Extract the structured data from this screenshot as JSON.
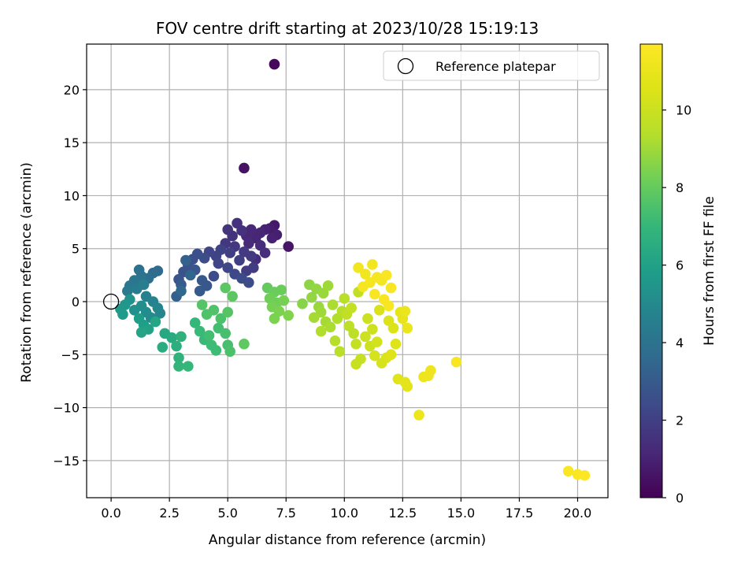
{
  "chart_data": {
    "type": "scatter",
    "title": "FOV centre drift starting at 2023/10/28 15:19:13",
    "xlabel": "Angular distance from reference (arcmin)",
    "ylabel": "Rotation from reference (arcmin)",
    "xlim": [
      -1.05,
      21.3
    ],
    "ylim": [
      -18.5,
      24.3
    ],
    "xticks": [
      0.0,
      2.5,
      5.0,
      7.5,
      10.0,
      12.5,
      15.0,
      17.5,
      20.0
    ],
    "xtick_labels": [
      "0.0",
      "2.5",
      "5.0",
      "7.5",
      "10.0",
      "12.5",
      "15.0",
      "17.5",
      "20.0"
    ],
    "yticks": [
      -15,
      -10,
      -5,
      0,
      5,
      10,
      15,
      20
    ],
    "ytick_labels": [
      "−15",
      "−10",
      "−5",
      "0",
      "5",
      "10",
      "15",
      "20"
    ],
    "grid": true,
    "legend": {
      "placement": "top-right",
      "entries": [
        "Reference platepar"
      ]
    },
    "reference_point": {
      "x": 0,
      "y": 0,
      "label": "Reference platepar"
    },
    "colorbar": {
      "label": "Hours from first FF file",
      "range": [
        0,
        11.7
      ],
      "ticks": [
        0,
        2,
        4,
        6,
        8,
        10
      ],
      "tick_labels": [
        "0",
        "2",
        "4",
        "6",
        "8",
        "10"
      ],
      "colormap": "viridis"
    },
    "points": [
      [
        7.0,
        22.4,
        0.2
      ],
      [
        5.7,
        12.6,
        0.5
      ],
      [
        7.6,
        5.2,
        0.6
      ],
      [
        7.0,
        7.2,
        0.7
      ],
      [
        6.8,
        6.9,
        0.8
      ],
      [
        7.1,
        6.3,
        0.9
      ],
      [
        6.9,
        6.0,
        1.0
      ],
      [
        6.6,
        6.8,
        1.0
      ],
      [
        6.4,
        6.5,
        1.1
      ],
      [
        6.2,
        6.0,
        1.1
      ],
      [
        6.0,
        6.8,
        1.2
      ],
      [
        5.8,
        6.2,
        1.2
      ],
      [
        5.9,
        5.5,
        1.3
      ],
      [
        6.4,
        5.3,
        1.3
      ],
      [
        6.6,
        4.6,
        1.4
      ],
      [
        6.2,
        4.0,
        1.4
      ],
      [
        5.4,
        7.4,
        1.5
      ],
      [
        5.6,
        6.7,
        1.5
      ],
      [
        5.2,
        6.2,
        1.6
      ],
      [
        5.0,
        6.8,
        1.6
      ],
      [
        4.9,
        5.5,
        1.7
      ],
      [
        5.3,
        5.2,
        1.7
      ],
      [
        5.7,
        4.7,
        1.8
      ],
      [
        6.0,
        4.3,
        1.8
      ],
      [
        6.1,
        3.2,
        1.9
      ],
      [
        5.8,
        2.9,
        1.9
      ],
      [
        5.5,
        3.9,
        2.0
      ],
      [
        5.1,
        4.6,
        2.0
      ],
      [
        4.7,
        4.9,
        2.1
      ],
      [
        4.5,
        4.3,
        2.1
      ],
      [
        4.2,
        4.7,
        2.2
      ],
      [
        4.6,
        3.6,
        2.2
      ],
      [
        5.0,
        3.2,
        2.3
      ],
      [
        5.3,
        2.6,
        2.3
      ],
      [
        5.6,
        2.2,
        2.4
      ],
      [
        5.9,
        1.8,
        2.4
      ],
      [
        4.4,
        2.4,
        2.5
      ],
      [
        4.0,
        4.1,
        2.5
      ],
      [
        3.7,
        4.5,
        2.6
      ],
      [
        3.5,
        4.0,
        2.6
      ],
      [
        3.3,
        3.4,
        2.7
      ],
      [
        3.1,
        2.8,
        2.7
      ],
      [
        2.9,
        2.1,
        2.8
      ],
      [
        3.6,
        3.0,
        2.8
      ],
      [
        3.9,
        2.0,
        2.9
      ],
      [
        4.1,
        1.5,
        2.9
      ],
      [
        3.8,
        1.0,
        3.0
      ],
      [
        3.0,
        1.6,
        3.1
      ],
      [
        2.8,
        0.5,
        3.2
      ],
      [
        3.2,
        3.9,
        3.3
      ],
      [
        3.4,
        2.5,
        3.4
      ],
      [
        3.0,
        1.0,
        3.5
      ],
      [
        2.0,
        2.9,
        3.6
      ],
      [
        1.8,
        2.7,
        3.7
      ],
      [
        1.6,
        2.2,
        3.8
      ],
      [
        1.2,
        3.0,
        3.9
      ],
      [
        1.3,
        2.4,
        4.0
      ],
      [
        1.0,
        2.0,
        4.1
      ],
      [
        0.8,
        1.5,
        4.2
      ],
      [
        0.7,
        1.0,
        4.3
      ],
      [
        1.1,
        1.2,
        4.4
      ],
      [
        1.4,
        1.6,
        4.5
      ],
      [
        1.5,
        0.5,
        4.6
      ],
      [
        1.8,
        0.0,
        4.7
      ],
      [
        2.0,
        -0.6,
        4.8
      ],
      [
        2.1,
        -1.1,
        4.9
      ],
      [
        1.7,
        -1.5,
        5.0
      ],
      [
        1.5,
        -1.0,
        5.1
      ],
      [
        1.3,
        -0.4,
        5.2
      ],
      [
        1.0,
        -0.8,
        5.3
      ],
      [
        0.8,
        0.2,
        5.4
      ],
      [
        0.6,
        -0.3,
        5.5
      ],
      [
        0.4,
        -0.7,
        5.6
      ],
      [
        0.5,
        -1.2,
        5.7
      ],
      [
        1.2,
        -1.6,
        5.8
      ],
      [
        1.4,
        -2.2,
        5.9
      ],
      [
        1.6,
        -2.6,
        6.0
      ],
      [
        1.3,
        -2.9,
        6.1
      ],
      [
        1.9,
        -1.9,
        6.2
      ],
      [
        2.3,
        -3.0,
        6.3
      ],
      [
        2.6,
        -3.4,
        6.4
      ],
      [
        2.2,
        -4.3,
        6.5
      ],
      [
        2.8,
        -4.2,
        6.6
      ],
      [
        3.0,
        -3.3,
        6.7
      ],
      [
        2.9,
        -5.3,
        6.8
      ],
      [
        2.9,
        -6.1,
        6.9
      ],
      [
        3.3,
        -6.1,
        7.0
      ],
      [
        3.6,
        -2.0,
        7.0
      ],
      [
        3.8,
        -2.8,
        7.1
      ],
      [
        4.0,
        -3.6,
        7.1
      ],
      [
        4.3,
        -4.1,
        7.2
      ],
      [
        4.5,
        -4.6,
        7.2
      ],
      [
        4.2,
        -3.2,
        7.3
      ],
      [
        4.6,
        -2.5,
        7.3
      ],
      [
        4.9,
        -3.0,
        7.4
      ],
      [
        5.0,
        -4.1,
        7.4
      ],
      [
        5.1,
        -4.7,
        7.5
      ],
      [
        4.7,
        -1.6,
        7.5
      ],
      [
        4.4,
        -0.8,
        7.6
      ],
      [
        4.1,
        -1.2,
        7.6
      ],
      [
        3.9,
        -0.3,
        7.7
      ],
      [
        5.0,
        -1.0,
        7.7
      ],
      [
        4.9,
        1.3,
        7.8
      ],
      [
        5.2,
        0.5,
        7.8
      ],
      [
        5.7,
        -4.0,
        7.9
      ],
      [
        6.7,
        1.3,
        8.0
      ],
      [
        7.0,
        0.9,
        8.1
      ],
      [
        7.3,
        1.1,
        8.1
      ],
      [
        6.8,
        0.3,
        8.2
      ],
      [
        7.1,
        -0.1,
        8.2
      ],
      [
        7.4,
        0.1,
        8.3
      ],
      [
        6.9,
        -0.5,
        8.3
      ],
      [
        7.2,
        -0.9,
        8.4
      ],
      [
        7.0,
        -1.6,
        8.4
      ],
      [
        7.6,
        -1.3,
        8.5
      ],
      [
        8.2,
        -0.2,
        8.6
      ],
      [
        8.5,
        1.6,
        8.7
      ],
      [
        8.8,
        1.2,
        8.8
      ],
      [
        8.6,
        0.4,
        8.8
      ],
      [
        8.9,
        -0.5,
        8.9
      ],
      [
        9.1,
        0.8,
        8.9
      ],
      [
        9.3,
        1.5,
        9.0
      ],
      [
        9.0,
        -1.0,
        9.0
      ],
      [
        8.7,
        -1.5,
        9.1
      ],
      [
        9.2,
        -1.9,
        9.1
      ],
      [
        9.5,
        -0.3,
        9.2
      ],
      [
        9.4,
        -2.4,
        9.2
      ],
      [
        9.0,
        -2.8,
        9.3
      ],
      [
        9.7,
        -1.6,
        9.3
      ],
      [
        9.9,
        -0.9,
        9.4
      ],
      [
        9.6,
        -3.7,
        9.4
      ],
      [
        10.0,
        0.3,
        9.5
      ],
      [
        9.8,
        -4.7,
        9.5
      ],
      [
        10.2,
        -2.3,
        9.6
      ],
      [
        10.4,
        -3.0,
        9.6
      ],
      [
        10.1,
        -1.2,
        9.7
      ],
      [
        10.6,
        0.9,
        9.7
      ],
      [
        10.3,
        -0.6,
        9.8
      ],
      [
        10.5,
        -4.0,
        9.8
      ],
      [
        10.7,
        -5.4,
        9.9
      ],
      [
        10.5,
        -5.9,
        9.9
      ],
      [
        10.9,
        -3.3,
        10.0
      ],
      [
        11.0,
        -1.6,
        10.0
      ],
      [
        11.2,
        -2.6,
        10.1
      ],
      [
        11.1,
        -4.2,
        10.1
      ],
      [
        11.4,
        -3.8,
        10.2
      ],
      [
        11.3,
        -5.1,
        10.3
      ],
      [
        11.6,
        -5.8,
        10.3
      ],
      [
        11.8,
        -5.3,
        10.4
      ],
      [
        11.5,
        -0.8,
        10.4
      ],
      [
        11.9,
        -1.8,
        10.5
      ],
      [
        12.1,
        -2.5,
        10.5
      ],
      [
        12.2,
        -4.0,
        10.6
      ],
      [
        12.0,
        -5.0,
        10.6
      ],
      [
        12.3,
        -7.3,
        10.7
      ],
      [
        12.6,
        -7.6,
        10.8
      ],
      [
        12.7,
        -8.0,
        10.8
      ],
      [
        12.4,
        -1.0,
        10.9
      ],
      [
        12.5,
        -1.6,
        10.9
      ],
      [
        12.7,
        -2.5,
        11.0
      ],
      [
        12.6,
        -0.9,
        11.0
      ],
      [
        13.2,
        -10.7,
        11.1
      ],
      [
        13.4,
        -7.1,
        11.1
      ],
      [
        13.6,
        -7.0,
        11.2
      ],
      [
        13.7,
        -6.5,
        11.2
      ],
      [
        10.6,
        3.2,
        11.3
      ],
      [
        10.9,
        2.6,
        11.3
      ],
      [
        11.2,
        3.5,
        11.3
      ],
      [
        11.4,
        2.3,
        11.4
      ],
      [
        11.6,
        2.0,
        11.4
      ],
      [
        11.1,
        1.8,
        11.4
      ],
      [
        10.8,
        1.4,
        11.4
      ],
      [
        11.8,
        2.5,
        11.5
      ],
      [
        12.0,
        1.3,
        11.5
      ],
      [
        11.3,
        0.7,
        11.5
      ],
      [
        11.7,
        0.2,
        11.5
      ],
      [
        11.9,
        -0.4,
        11.5
      ],
      [
        14.8,
        -5.7,
        11.5
      ],
      [
        19.6,
        -16.0,
        11.6
      ],
      [
        20.0,
        -16.3,
        11.6
      ],
      [
        20.3,
        -16.4,
        11.7
      ]
    ]
  }
}
